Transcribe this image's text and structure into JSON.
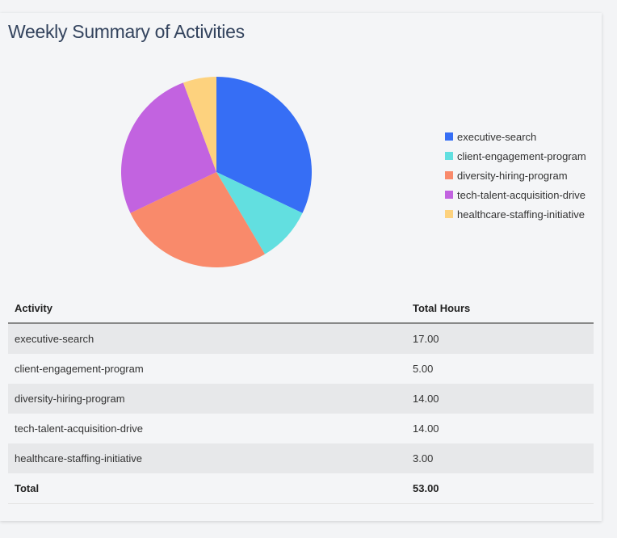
{
  "chart_data": {
    "type": "pie",
    "title": "Weekly Summary of Activities",
    "categories": [
      "executive-search",
      "client-engagement-program",
      "diversity-hiring-program",
      "tech-talent-acquisition-drive",
      "healthcare-staffing-initiative"
    ],
    "values": [
      17,
      5,
      14,
      14,
      3
    ],
    "colors": [
      "#366ef5",
      "#62dfe0",
      "#f98a6b",
      "#c263e0",
      "#fdd27e"
    ],
    "legend_placement": "right",
    "start_angle": "top",
    "direction": "clockwise"
  },
  "table": {
    "headers": [
      "Activity",
      "Total Hours"
    ],
    "rows": [
      [
        "executive-search",
        "17.00"
      ],
      [
        "client-engagement-program",
        "5.00"
      ],
      [
        "diversity-hiring-program",
        "14.00"
      ],
      [
        "tech-talent-acquisition-drive",
        "14.00"
      ],
      [
        "healthcare-staffing-initiative",
        "3.00"
      ]
    ],
    "total": [
      "Total",
      "53.00"
    ]
  }
}
